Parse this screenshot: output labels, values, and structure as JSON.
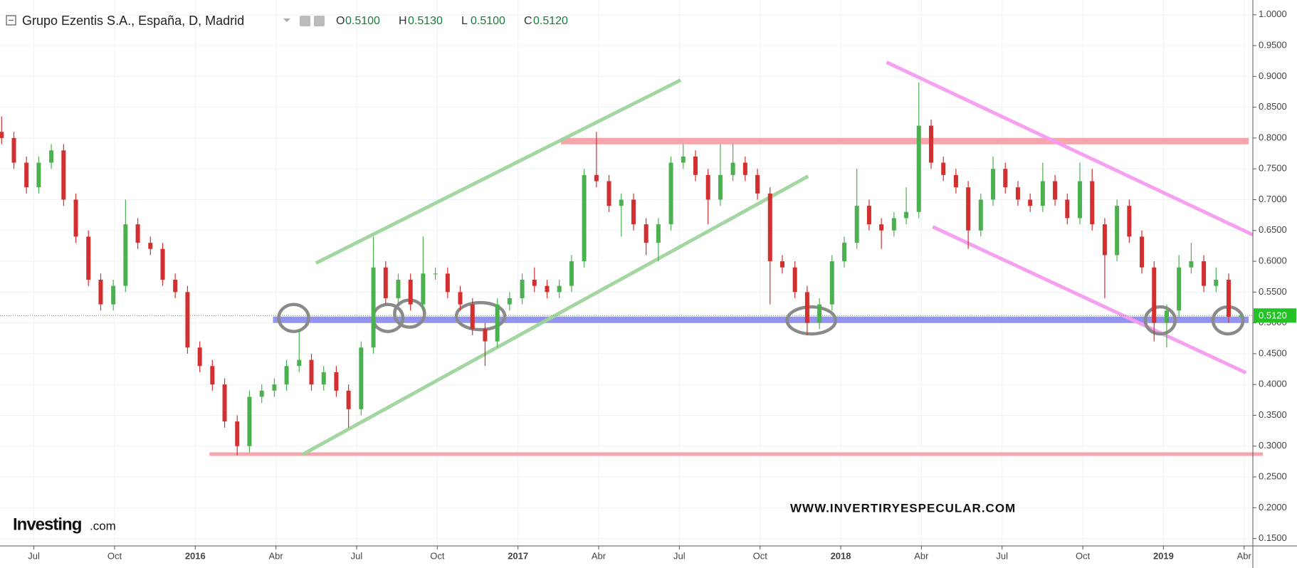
{
  "chart_data": {
    "type": "candlestick",
    "title": "Grupo Ezentis S.A., España, D, Madrid",
    "ohlc_labels": [
      {
        "key": "O",
        "text": "0.5100"
      },
      {
        "key": "H",
        "text": "0.5130"
      },
      {
        "key": "L",
        "text": "0.5100"
      },
      {
        "key": "C",
        "text": "0.5120"
      }
    ],
    "watermark": "WWW.INVERTIRYESPECULAR.COM",
    "logo": {
      "main": "Investing",
      "suffix": ".com"
    },
    "up_color": "#4caf50",
    "down_color": "#d32f2f",
    "grid": true,
    "xlim": [
      2015.395,
      2019.277
    ],
    "ylim": [
      0.138,
      1.024
    ],
    "xticks": [
      {
        "value": 2015.5,
        "label": "Jul"
      },
      {
        "value": 2015.75,
        "label": "Oct"
      },
      2016,
      {
        "value": 2016.25,
        "label": "Abr"
      },
      {
        "value": 2016.5,
        "label": "Jul"
      },
      {
        "value": 2016.75,
        "label": "Oct"
      },
      2017,
      {
        "value": 2017.25,
        "label": "Abr"
      },
      {
        "value": 2017.5,
        "label": "Jul"
      },
      {
        "value": 2017.75,
        "label": "Oct"
      },
      2018,
      {
        "value": 2018.25,
        "label": "Abr"
      },
      {
        "value": 2018.5,
        "label": "Jul"
      },
      {
        "value": 2018.75,
        "label": "Oct"
      },
      2019,
      {
        "value": 2019.25,
        "label": "Abr"
      }
    ],
    "yticks": [
      {
        "value": 0.15,
        "label": "0.1500"
      },
      {
        "value": 0.2,
        "label": "0.2000"
      },
      {
        "value": 0.25,
        "label": "0.2500"
      },
      {
        "value": 0.3,
        "label": "0.3000"
      },
      {
        "value": 0.35,
        "label": "0.3500"
      },
      {
        "value": 0.4,
        "label": "0.4000"
      },
      {
        "value": 0.45,
        "label": "0.4500"
      },
      {
        "value": 0.5,
        "label": "0.5000"
      },
      {
        "value": 0.55,
        "label": "0.5500"
      },
      {
        "value": 0.6,
        "label": "0.6000"
      },
      {
        "value": 0.65,
        "label": "0.6500"
      },
      {
        "value": 0.7,
        "label": "0.7000"
      },
      {
        "value": 0.75,
        "label": "0.7500"
      },
      {
        "value": 0.8,
        "label": "0.8000"
      },
      {
        "value": 0.85,
        "label": "0.8500"
      },
      {
        "value": 0.9,
        "label": "0.9000"
      },
      {
        "value": 0.95,
        "label": "0.9500"
      },
      {
        "value": 1.0,
        "label": "1.0000"
      }
    ],
    "last_price": {
      "value": 0.512,
      "label": "0.5120",
      "color": "#22c322"
    },
    "x": [
      2015.4,
      2015.438,
      2015.477,
      2015.515,
      2015.554,
      2015.592,
      2015.63,
      2015.669,
      2015.707,
      2015.746,
      2015.784,
      2015.822,
      2015.861,
      2015.899,
      2015.938,
      2015.976,
      2016.014,
      2016.053,
      2016.091,
      2016.13,
      2016.168,
      2016.206,
      2016.245,
      2016.283,
      2016.322,
      2016.36,
      2016.398,
      2016.437,
      2016.475,
      2016.514,
      2016.552,
      2016.59,
      2016.629,
      2016.667,
      2016.706,
      2016.744,
      2016.782,
      2016.821,
      2016.859,
      2016.898,
      2016.936,
      2016.974,
      2017.013,
      2017.051,
      2017.09,
      2017.128,
      2017.166,
      2017.205,
      2017.243,
      2017.282,
      2017.32,
      2017.358,
      2017.397,
      2017.435,
      2017.474,
      2017.512,
      2017.55,
      2017.589,
      2017.627,
      2017.666,
      2017.704,
      2017.742,
      2017.781,
      2017.819,
      2017.858,
      2017.896,
      2017.934,
      2017.973,
      2018.011,
      2018.05,
      2018.088,
      2018.126,
      2018.165,
      2018.203,
      2018.242,
      2018.28,
      2018.318,
      2018.357,
      2018.395,
      2018.434,
      2018.472,
      2018.51,
      2018.549,
      2018.587,
      2018.626,
      2018.664,
      2018.702,
      2018.741,
      2018.779,
      2018.818,
      2018.856,
      2018.894,
      2018.933,
      2018.971,
      2019.01,
      2019.048,
      2019.086,
      2019.125,
      2019.163,
      2019.202,
      2019.24
    ],
    "open": [
      0.81,
      0.8,
      0.76,
      0.72,
      0.76,
      0.78,
      0.7,
      0.64,
      0.57,
      0.53,
      0.56,
      0.66,
      0.63,
      0.62,
      0.57,
      0.55,
      0.46,
      0.43,
      0.4,
      0.34,
      0.3,
      0.38,
      0.39,
      0.4,
      0.43,
      0.44,
      0.4,
      0.42,
      0.39,
      0.36,
      0.46,
      0.59,
      0.54,
      0.57,
      0.53,
      0.58,
      0.58,
      0.55,
      0.53,
      0.49,
      0.47,
      0.53,
      0.54,
      0.57,
      0.56,
      0.55,
      0.56,
      0.6,
      0.74,
      0.73,
      0.69,
      0.7,
      0.66,
      0.63,
      0.66,
      0.76,
      0.77,
      0.74,
      0.7,
      0.74,
      0.76,
      0.74,
      0.71,
      0.6,
      0.59,
      0.55,
      0.5,
      0.53,
      0.6,
      0.63,
      0.69,
      0.66,
      0.65,
      0.67,
      0.68,
      0.82,
      0.76,
      0.74,
      0.72,
      0.65,
      0.7,
      0.75,
      0.72,
      0.7,
      0.69,
      0.73,
      0.7,
      0.67,
      0.73,
      0.66,
      0.61,
      0.69,
      0.64,
      0.59,
      0.5,
      0.52,
      0.59,
      0.6,
      0.56,
      0.57,
      0.51
    ],
    "high": [
      0.835,
      0.81,
      0.77,
      0.77,
      0.79,
      0.79,
      0.71,
      0.65,
      0.58,
      0.57,
      0.7,
      0.67,
      0.64,
      0.63,
      0.58,
      0.56,
      0.47,
      0.44,
      0.41,
      0.35,
      0.39,
      0.4,
      0.41,
      0.44,
      0.49,
      0.45,
      0.43,
      0.43,
      0.4,
      0.47,
      0.64,
      0.6,
      0.58,
      0.58,
      0.64,
      0.59,
      0.59,
      0.56,
      0.54,
      0.5,
      0.54,
      0.55,
      0.58,
      0.59,
      0.57,
      0.57,
      0.61,
      0.75,
      0.81,
      0.74,
      0.71,
      0.71,
      0.67,
      0.67,
      0.77,
      0.79,
      0.78,
      0.75,
      0.79,
      0.79,
      0.77,
      0.75,
      0.72,
      0.61,
      0.6,
      0.56,
      0.54,
      0.61,
      0.64,
      0.75,
      0.7,
      0.67,
      0.68,
      0.72,
      0.89,
      0.83,
      0.77,
      0.75,
      0.73,
      0.71,
      0.77,
      0.76,
      0.73,
      0.71,
      0.76,
      0.74,
      0.71,
      0.76,
      0.75,
      0.67,
      0.7,
      0.7,
      0.65,
      0.6,
      0.53,
      0.61,
      0.63,
      0.61,
      0.59,
      0.58,
      0.513
    ],
    "low": [
      0.79,
      0.75,
      0.71,
      0.71,
      0.75,
      0.69,
      0.63,
      0.56,
      0.52,
      0.52,
      0.55,
      0.62,
      0.61,
      0.56,
      0.54,
      0.45,
      0.42,
      0.39,
      0.33,
      0.285,
      0.29,
      0.37,
      0.38,
      0.39,
      0.42,
      0.39,
      0.39,
      0.38,
      0.33,
      0.35,
      0.45,
      0.53,
      0.53,
      0.52,
      0.52,
      0.57,
      0.54,
      0.52,
      0.48,
      0.43,
      0.46,
      0.52,
      0.53,
      0.55,
      0.54,
      0.54,
      0.55,
      0.59,
      0.72,
      0.68,
      0.64,
      0.65,
      0.61,
      0.6,
      0.65,
      0.75,
      0.73,
      0.66,
      0.69,
      0.73,
      0.73,
      0.7,
      0.53,
      0.58,
      0.54,
      0.48,
      0.49,
      0.52,
      0.59,
      0.62,
      0.65,
      0.62,
      0.64,
      0.66,
      0.67,
      0.75,
      0.73,
      0.71,
      0.62,
      0.64,
      0.69,
      0.71,
      0.69,
      0.68,
      0.68,
      0.69,
      0.66,
      0.66,
      0.65,
      0.54,
      0.6,
      0.63,
      0.58,
      0.47,
      0.46,
      0.51,
      0.58,
      0.55,
      0.55,
      0.5,
      0.51
    ],
    "close": [
      0.8,
      0.76,
      0.72,
      0.76,
      0.78,
      0.7,
      0.64,
      0.57,
      0.53,
      0.56,
      0.66,
      0.63,
      0.62,
      0.57,
      0.55,
      0.46,
      0.43,
      0.4,
      0.34,
      0.3,
      0.38,
      0.39,
      0.4,
      0.43,
      0.44,
      0.4,
      0.42,
      0.39,
      0.36,
      0.46,
      0.59,
      0.54,
      0.57,
      0.53,
      0.58,
      0.58,
      0.55,
      0.53,
      0.49,
      0.47,
      0.53,
      0.54,
      0.57,
      0.56,
      0.55,
      0.56,
      0.6,
      0.74,
      0.73,
      0.69,
      0.7,
      0.66,
      0.63,
      0.66,
      0.76,
      0.77,
      0.74,
      0.7,
      0.74,
      0.76,
      0.74,
      0.71,
      0.6,
      0.59,
      0.55,
      0.5,
      0.53,
      0.6,
      0.63,
      0.69,
      0.66,
      0.65,
      0.67,
      0.68,
      0.82,
      0.76,
      0.74,
      0.72,
      0.65,
      0.7,
      0.75,
      0.72,
      0.7,
      0.69,
      0.73,
      0.7,
      0.67,
      0.73,
      0.66,
      0.61,
      0.69,
      0.64,
      0.59,
      0.5,
      0.52,
      0.59,
      0.6,
      0.56,
      0.57,
      0.51,
      0.512
    ],
    "trendlines": [
      {
        "x": [
          2017.133,
          2019.264
        ],
        "y": [
          0.795,
          0.795
        ],
        "color": "#f7a1a8",
        "width": 9
      },
      {
        "x": [
          2016.044,
          2019.308
        ],
        "y": [
          0.287,
          0.287
        ],
        "color": "#f7a1a8",
        "width": 5
      },
      {
        "x": [
          2016.241,
          2019.264
        ],
        "y": [
          0.505,
          0.505
        ],
        "color": "#8e8ff2",
        "width": 9
      },
      {
        "x": [
          2016.374,
          2017.504
        ],
        "y": [
          0.597,
          0.894
        ],
        "color": "#9fd49c",
        "width": 5
      },
      {
        "x": [
          2016.331,
          2017.899
        ],
        "y": [
          0.286,
          0.738
        ],
        "color": "#9fd49c",
        "width": 5
      },
      {
        "x": [
          2018.142,
          2019.277
        ],
        "y": [
          0.923,
          0.643
        ],
        "color": "#f59cf0",
        "width": 5
      },
      {
        "x": [
          2018.285,
          2019.256
        ],
        "y": [
          0.656,
          0.419
        ],
        "color": "#f59cf0",
        "width": 5
      }
    ],
    "ellipses": {
      "x": [
        2016.305,
        2016.597,
        2016.664,
        2016.884,
        2017.909,
        2018.99,
        2019.2
      ],
      "y": [
        0.508,
        0.508,
        0.515,
        0.511,
        0.504,
        0.504,
        0.504
      ],
      "color": "#8a8a8a"
    }
  }
}
